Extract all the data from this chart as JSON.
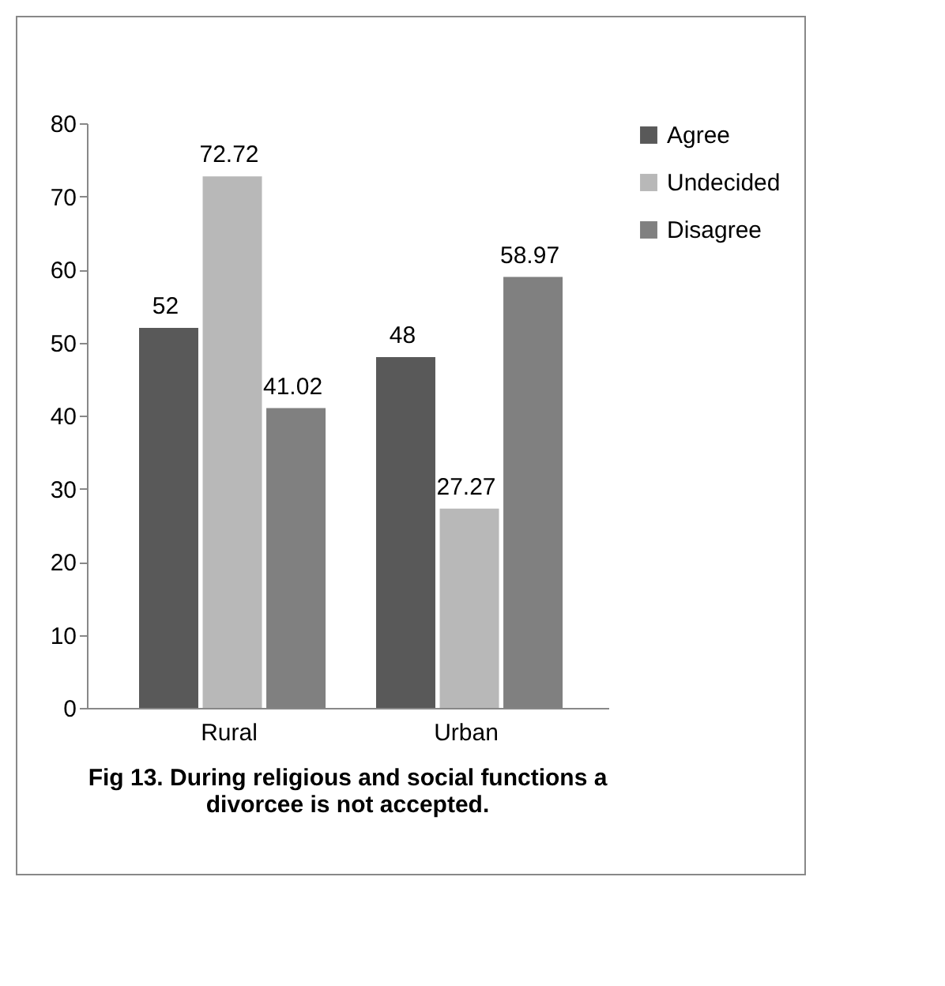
{
  "chart_data": {
    "type": "bar",
    "title": "Fig 13. During religious and social functions a divorcee is not accepted.",
    "categories": [
      "Rural",
      "Urban"
    ],
    "series": [
      {
        "name": "Agree",
        "color": "#595959",
        "values": [
          52,
          48
        ]
      },
      {
        "name": "Undecided",
        "color": "#b8b8b8",
        "values": [
          72.72,
          27.27
        ]
      },
      {
        "name": "Disagree",
        "color": "#808080",
        "values": [
          41.02,
          58.97
        ]
      }
    ],
    "ylim": [
      0,
      80
    ],
    "yticks": [
      0,
      10,
      20,
      30,
      40,
      50,
      60,
      70,
      80
    ],
    "grid": false,
    "legend": "right",
    "data_labels": true
  }
}
